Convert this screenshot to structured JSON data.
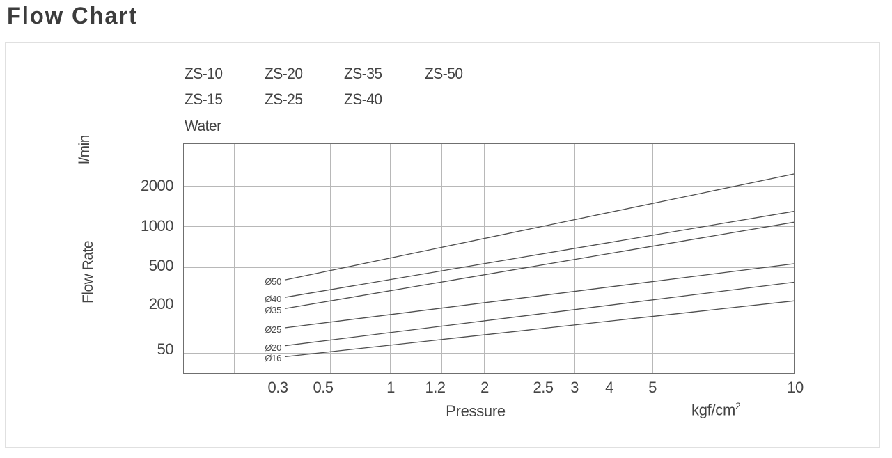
{
  "title": "Flow Chart",
  "panel": {
    "legend": {
      "rows": [
        [
          "ZS-10",
          "ZS-20",
          "ZS-35",
          "ZS-50"
        ],
        [
          "ZS-15",
          "ZS-25",
          "ZS-40"
        ],
        [
          "Water"
        ]
      ]
    },
    "y_axis": {
      "unit": "l/min",
      "label": "Flow Rate",
      "tick_labels": [
        "2000",
        "1000",
        "500",
        "200",
        "50"
      ]
    },
    "x_axis": {
      "label": "Pressure",
      "unit_base": "kgf/cm",
      "unit_exp": "2",
      "tick_labels": [
        "0.3",
        "0.5",
        "1",
        "1.2",
        "2",
        "2.5",
        "3",
        "4",
        "5",
        "10"
      ]
    }
  },
  "chart_data": {
    "type": "line",
    "title": "Flow Chart",
    "xlabel": "Pressure (kgf/cm²)",
    "ylabel": "Flow Rate (l/min)",
    "x_scale": "log",
    "y_scale": "log",
    "grid": true,
    "medium": "Water",
    "models": [
      "ZS-10",
      "ZS-15",
      "ZS-20",
      "ZS-25",
      "ZS-35",
      "ZS-40",
      "ZS-50"
    ],
    "x_ticks": [
      0.3,
      0.5,
      1,
      1.2,
      2,
      2.5,
      3,
      4,
      5,
      10
    ],
    "y_ticks": [
      50,
      200,
      500,
      1000,
      2000
    ],
    "xlim": [
      0.2,
      10
    ],
    "ylim": [
      35,
      4000
    ],
    "series": [
      {
        "name": "Ø50",
        "x": [
          0.3,
          10
        ],
        "y": [
          360,
          2450
        ]
      },
      {
        "name": "Ø40",
        "x": [
          0.3,
          10
        ],
        "y": [
          230,
          1290
        ]
      },
      {
        "name": "Ø35",
        "x": [
          0.3,
          10
        ],
        "y": [
          170,
          1070
        ]
      },
      {
        "name": "Ø25",
        "x": [
          0.3,
          10
        ],
        "y": [
          100,
          530
        ]
      },
      {
        "name": "Ø20",
        "x": [
          0.3,
          10
        ],
        "y": [
          61,
          340
        ]
      },
      {
        "name": "Ø16",
        "x": [
          0.3,
          10
        ],
        "y": [
          45,
          210
        ]
      }
    ]
  },
  "colors": {
    "text": "#3d3d3d",
    "series_line": "#4e4e4e",
    "grid_line": "#b8b8b8",
    "plot_border": "#6f6f6f",
    "panel_border": "#e0e0e0"
  }
}
